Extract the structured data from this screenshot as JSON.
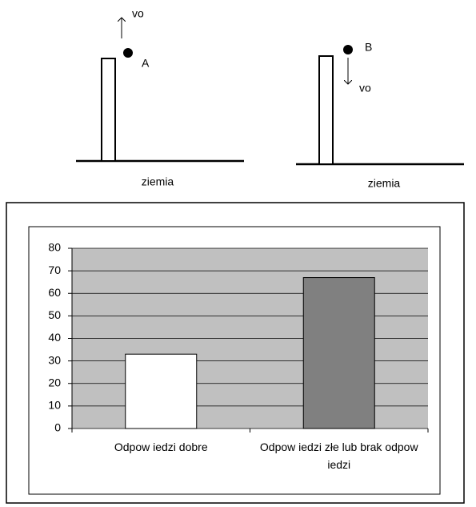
{
  "diagram": {
    "left": {
      "velocity_label": "vo",
      "point_label": "A",
      "ground_label": "ziemia"
    },
    "right": {
      "velocity_label": "vo",
      "point_label": "B",
      "ground_label": "ziemia"
    }
  },
  "chart_data": {
    "type": "bar",
    "categories": [
      "Odpow iedzi dobre",
      "Odpow iedzi złe lub brak odpow iedzi"
    ],
    "values": [
      33,
      67
    ],
    "colors": [
      "#ffffff",
      "#808080"
    ],
    "ylim": [
      0,
      80
    ],
    "yticks": [
      0,
      10,
      20,
      30,
      40,
      50,
      60,
      70,
      80
    ],
    "grid": true
  }
}
